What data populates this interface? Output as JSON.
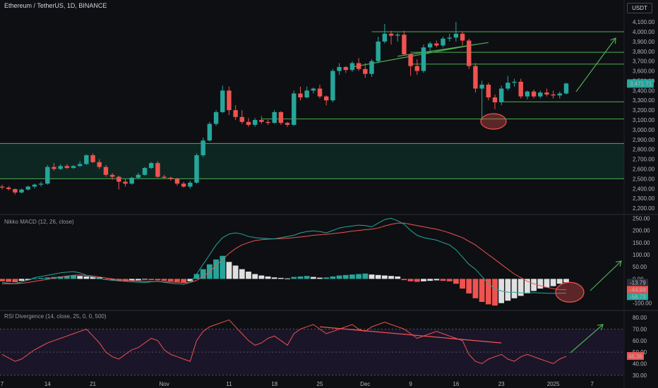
{
  "header": {
    "title": "Ethereum / TetherUS, 1D, BINANCE",
    "currency": "USDT"
  },
  "macd_label": "Nikko MACD (12, 26, close)",
  "rsi_label": "RSI Divergence (14, close, 25, 0, 0, 500)",
  "colors": {
    "up": "#26a69a",
    "down": "#ef5350",
    "level_line": "#4caf50",
    "macd_line": "#26a69a",
    "signal_line": "#ef5350",
    "rsi_line": "#ef5350",
    "hist_pos": "#26a69a",
    "hist_neg": "#ef5350",
    "hist_fade": "#e0e0e0",
    "annotation": "#ef5350"
  },
  "chart_data": [
    {
      "type": "candlestick",
      "title": "Ethereum / TetherUS, 1D, BINANCE",
      "ylim": [
        2150,
        4180
      ],
      "y_ticks": [
        "4,100.00",
        "4,000.00",
        "3,900.00",
        "3,800.00",
        "3,700.00",
        "3,600.00",
        "3,500.00",
        "3,400.00",
        "3,300.00",
        "3,200.00",
        "3,100.00",
        "3,000.00",
        "2,900.00",
        "2,800.00",
        "2,700.00",
        "2,600.00",
        "2,500.00",
        "2,400.00",
        "2,300.00",
        "2,200.00"
      ],
      "y_tick_values": [
        4100,
        4000,
        3900,
        3800,
        3700,
        3600,
        3500,
        3400,
        3300,
        3200,
        3100,
        3000,
        2900,
        2800,
        2700,
        2600,
        2500,
        2400,
        2300,
        2200
      ],
      "x_ticks": [
        "7",
        "14",
        "21",
        "Nov",
        "11",
        "18",
        "25",
        "Dec",
        "9",
        "16",
        "23",
        "2025",
        "7"
      ],
      "x_tick_days": [
        0,
        7,
        14,
        25,
        35,
        42,
        49,
        56,
        63,
        70,
        77,
        85,
        91
      ],
      "last_price_label": "3,471.71",
      "last_price": 3471.71,
      "candles": [
        [
          2420,
          2440,
          2390,
          2410
        ],
        [
          2410,
          2425,
          2380,
          2395
        ],
        [
          2395,
          2400,
          2340,
          2360
        ],
        [
          2360,
          2400,
          2350,
          2390
        ],
        [
          2390,
          2430,
          2380,
          2420
        ],
        [
          2420,
          2450,
          2400,
          2440
        ],
        [
          2440,
          2470,
          2420,
          2450
        ],
        [
          2450,
          2640,
          2440,
          2620
        ],
        [
          2620,
          2660,
          2580,
          2600
        ],
        [
          2600,
          2650,
          2590,
          2630
        ],
        [
          2630,
          2650,
          2600,
          2610
        ],
        [
          2610,
          2640,
          2600,
          2630
        ],
        [
          2630,
          2680,
          2620,
          2650
        ],
        [
          2650,
          2750,
          2640,
          2740
        ],
        [
          2740,
          2760,
          2660,
          2670
        ],
        [
          2670,
          2700,
          2600,
          2620
        ],
        [
          2620,
          2640,
          2520,
          2540
        ],
        [
          2540,
          2560,
          2490,
          2520
        ],
        [
          2520,
          2530,
          2390,
          2470
        ],
        [
          2470,
          2500,
          2420,
          2450
        ],
        [
          2450,
          2520,
          2440,
          2510
        ],
        [
          2510,
          2560,
          2500,
          2540
        ],
        [
          2540,
          2620,
          2530,
          2610
        ],
        [
          2610,
          2670,
          2600,
          2660
        ],
        [
          2660,
          2680,
          2510,
          2520
        ],
        [
          2520,
          2540,
          2500,
          2510
        ],
        [
          2510,
          2520,
          2480,
          2500
        ],
        [
          2500,
          2510,
          2430,
          2450
        ],
        [
          2450,
          2470,
          2410,
          2420
        ],
        [
          2420,
          2480,
          2400,
          2460
        ],
        [
          2460,
          2760,
          2450,
          2740
        ],
        [
          2740,
          2920,
          2720,
          2890
        ],
        [
          2890,
          3080,
          2880,
          3060
        ],
        [
          3060,
          3200,
          3040,
          3180
        ],
        [
          3180,
          3450,
          3170,
          3400
        ],
        [
          3400,
          3440,
          3150,
          3200
        ],
        [
          3200,
          3250,
          3100,
          3130
        ],
        [
          3130,
          3200,
          3060,
          3080
        ],
        [
          3080,
          3120,
          3030,
          3050
        ],
        [
          3050,
          3120,
          3030,
          3100
        ],
        [
          3100,
          3140,
          3060,
          3080
        ],
        [
          3080,
          3100,
          3050,
          3070
        ],
        [
          3070,
          3200,
          3060,
          3180
        ],
        [
          3180,
          3190,
          3050,
          3070
        ],
        [
          3070,
          3080,
          3030,
          3050
        ],
        [
          3050,
          3400,
          3040,
          3370
        ],
        [
          3370,
          3440,
          3300,
          3330
        ],
        [
          3330,
          3440,
          3320,
          3400
        ],
        [
          3400,
          3430,
          3370,
          3420
        ],
        [
          3420,
          3460,
          3320,
          3340
        ],
        [
          3340,
          3350,
          3250,
          3300
        ],
        [
          3300,
          3620,
          3280,
          3600
        ],
        [
          3600,
          3680,
          3560,
          3640
        ],
        [
          3640,
          3650,
          3580,
          3610
        ],
        [
          3610,
          3700,
          3590,
          3680
        ],
        [
          3680,
          3730,
          3600,
          3620
        ],
        [
          3620,
          3680,
          3530,
          3570
        ],
        [
          3570,
          3720,
          3540,
          3700
        ],
        [
          3700,
          3950,
          3680,
          3900
        ],
        [
          3900,
          4080,
          3880,
          3980
        ],
        [
          3980,
          4010,
          3870,
          3960
        ],
        [
          3960,
          3990,
          3900,
          3970
        ],
        [
          3970,
          4010,
          3760,
          3770
        ],
        [
          3770,
          3780,
          3550,
          3650
        ],
        [
          3650,
          3720,
          3560,
          3600
        ],
        [
          3600,
          3870,
          3580,
          3840
        ],
        [
          3840,
          3900,
          3800,
          3880
        ],
        [
          3880,
          3910,
          3840,
          3860
        ],
        [
          3860,
          3950,
          3840,
          3930
        ],
        [
          3930,
          3980,
          3900,
          3940
        ],
        [
          3940,
          4100,
          3900,
          3980
        ],
        [
          3980,
          4000,
          3860,
          3910
        ],
        [
          3910,
          3930,
          3620,
          3650
        ],
        [
          3650,
          3680,
          3380,
          3420
        ],
        [
          3420,
          3500,
          3100,
          3460
        ],
        [
          3460,
          3480,
          3300,
          3330
        ],
        [
          3330,
          3360,
          3210,
          3280
        ],
        [
          3280,
          3450,
          3250,
          3420
        ],
        [
          3420,
          3550,
          3400,
          3480
        ],
        [
          3480,
          3520,
          3440,
          3490
        ],
        [
          3490,
          3520,
          3320,
          3340
        ],
        [
          3340,
          3400,
          3310,
          3390
        ],
        [
          3390,
          3410,
          3320,
          3340
        ],
        [
          3340,
          3400,
          3320,
          3380
        ],
        [
          3380,
          3420,
          3340,
          3360
        ],
        [
          3360,
          3400,
          3320,
          3350
        ],
        [
          3350,
          3390,
          3320,
          3370
        ],
        [
          3370,
          3480,
          3360,
          3472
        ]
      ],
      "levels": [
        {
          "price": 4000,
          "from_day": 57
        },
        {
          "price": 3790,
          "from_day": 63
        },
        {
          "price": 3670,
          "from_day": 63
        },
        {
          "price": 3285,
          "from_day": 77
        },
        {
          "price": 3110,
          "from_day": 40
        },
        {
          "price": 2860,
          "from_day": -30
        },
        {
          "price": 2500,
          "from_day": -30
        }
      ],
      "zone": {
        "from": 2500,
        "to": 2860
      },
      "trendlines": [
        {
          "from": [
            54,
            3640
          ],
          "to": [
            73,
            3870
          ]
        },
        {
          "from": [
            61,
            3750
          ],
          "to": [
            75,
            3890
          ]
        }
      ]
    },
    {
      "type": "bar",
      "title": "Nikko MACD (12, 26, close)",
      "ylim": [
        -130,
        260
      ],
      "y_ticks": [
        "250.00",
        "200.00",
        "150.00",
        "100.00",
        "50.00",
        "0.00",
        "-100.00"
      ],
      "y_tick_values": [
        250,
        200,
        150,
        100,
        50,
        0,
        -100
      ],
      "value_labels": [
        "-13.79",
        "-44.94",
        "-58.73"
      ],
      "value_label_values": [
        -13.79,
        -44.94,
        -58.73
      ],
      "histogram": [
        -10,
        -12,
        -14,
        -8,
        -5,
        2,
        4,
        6,
        8,
        10,
        12,
        14,
        12,
        10,
        8,
        6,
        -3,
        -6,
        -8,
        -10,
        -8,
        -6,
        -3,
        -5,
        -6,
        -8,
        -10,
        -12,
        -14,
        -10,
        20,
        40,
        60,
        80,
        95,
        70,
        55,
        40,
        30,
        20,
        14,
        10,
        6,
        4,
        2,
        8,
        10,
        12,
        8,
        5,
        6,
        10,
        14,
        16,
        18,
        20,
        22,
        18,
        16,
        14,
        12,
        10,
        -5,
        -10,
        -12,
        -10,
        -8,
        -6,
        -8,
        -10,
        -20,
        -40,
        -60,
        -80,
        -95,
        -105,
        -110,
        -100,
        -90,
        -80,
        -70,
        -60,
        -50,
        -40,
        -35,
        -30,
        -20,
        -14
      ],
      "macd": [
        -15,
        -18,
        -20,
        -12,
        -5,
        5,
        10,
        15,
        20,
        25,
        28,
        30,
        25,
        15,
        8,
        2,
        -3,
        -6,
        -8,
        -10,
        -12,
        -14,
        -15,
        -12,
        -10,
        -14,
        -18,
        -20,
        -22,
        -15,
        20,
        60,
        100,
        140,
        170,
        185,
        190,
        185,
        175,
        170,
        168,
        166,
        165,
        170,
        175,
        180,
        190,
        195,
        198,
        195,
        190,
        200,
        210,
        215,
        218,
        222,
        220,
        215,
        230,
        245,
        250,
        240,
        225,
        200,
        180,
        170,
        165,
        160,
        150,
        140,
        120,
        90,
        60,
        40,
        10,
        -20,
        -40,
        -50,
        -55,
        -55,
        -58,
        -58,
        -57,
        -58,
        -59,
        -60,
        -59,
        -58.73
      ],
      "signal": [
        -20,
        -20,
        -20,
        -18,
        -15,
        -10,
        -6,
        -2,
        4,
        8,
        12,
        15,
        16,
        14,
        12,
        8,
        4,
        0,
        -3,
        -5,
        -7,
        -9,
        -10,
        -11,
        -11,
        -12,
        -13,
        -14,
        -16,
        -15,
        -6,
        10,
        30,
        55,
        80,
        105,
        125,
        140,
        150,
        158,
        162,
        164,
        165,
        166,
        168,
        170,
        173,
        176,
        180,
        182,
        184,
        187,
        190,
        193,
        197,
        200,
        203,
        205,
        210,
        218,
        225,
        230,
        230,
        225,
        220,
        215,
        210,
        205,
        198,
        190,
        180,
        170,
        155,
        140,
        120,
        100,
        80,
        60,
        40,
        20,
        5,
        -10,
        -20,
        -28,
        -35,
        -40,
        -44,
        -44.94
      ]
    },
    {
      "type": "line",
      "title": "RSI Divergence (14, close, 25, 0, 0, 500)",
      "ylim": [
        25,
        85
      ],
      "y_ticks": [
        "80.00",
        "70.00",
        "60.00",
        "50.00",
        "40.00",
        "30.00"
      ],
      "y_tick_values": [
        80,
        70,
        60,
        50,
        40,
        30
      ],
      "value_label": "46.36",
      "overbought": 70,
      "oversold": 30,
      "rsi": [
        48,
        45,
        42,
        44,
        48,
        52,
        55,
        58,
        60,
        62,
        64,
        66,
        68,
        70,
        64,
        58,
        50,
        46,
        44,
        48,
        52,
        54,
        58,
        62,
        60,
        52,
        48,
        46,
        44,
        42,
        60,
        68,
        72,
        74,
        76,
        78,
        72,
        66,
        60,
        56,
        58,
        62,
        64,
        60,
        56,
        66,
        70,
        72,
        74,
        70,
        66,
        68,
        70,
        72,
        74,
        70,
        68,
        72,
        74,
        76,
        74,
        72,
        70,
        66,
        62,
        64,
        66,
        68,
        66,
        64,
        62,
        60,
        48,
        42,
        40,
        44,
        46,
        48,
        44,
        42,
        46,
        48,
        46,
        44,
        42,
        40,
        44,
        46.36
      ],
      "divergence_line": {
        "from": [
          49,
          72
        ],
        "to": [
          77,
          58
        ]
      }
    }
  ]
}
